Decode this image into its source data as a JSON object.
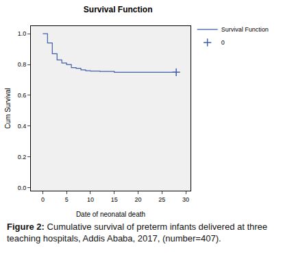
{
  "chart_data": {
    "type": "line",
    "title": "Survival Function",
    "x_label": "Date of neonatal death",
    "y_label": "Cum Survival",
    "series": [
      {
        "name": "Survival Function",
        "type": "step",
        "color": "#3f5ea8",
        "line_style": "solid",
        "x": [
          0,
          1,
          2,
          3,
          4,
          5,
          6,
          7,
          8,
          9,
          10,
          12,
          15,
          28
        ],
        "values": [
          1.0,
          0.94,
          0.87,
          0.83,
          0.81,
          0.8,
          0.78,
          0.775,
          0.765,
          0.76,
          0.757,
          0.755,
          0.75,
          0.75
        ]
      },
      {
        "name": "0",
        "type": "scatter",
        "color": "#3f5ea8",
        "marker": "cross",
        "x": [
          28
        ],
        "values": [
          0.75
        ]
      }
    ],
    "xlim": [
      -2.5,
      31
    ],
    "xticks": [
      0,
      5,
      10,
      15,
      20,
      25,
      30
    ],
    "ylim": [
      -0.02,
      1.05
    ],
    "yticks": [
      {
        "value": 0,
        "label": "0.0"
      },
      0.2,
      0.4,
      0.6,
      0.8,
      {
        "value": 1,
        "label": "1.0"
      }
    ],
    "grid": false,
    "legend": "right"
  },
  "caption": {
    "label": "Figure 2:",
    "text": "Cumulative survival of preterm infants delivered at three teaching hospitals, Addis Ababa, 2017, (number=407)."
  }
}
